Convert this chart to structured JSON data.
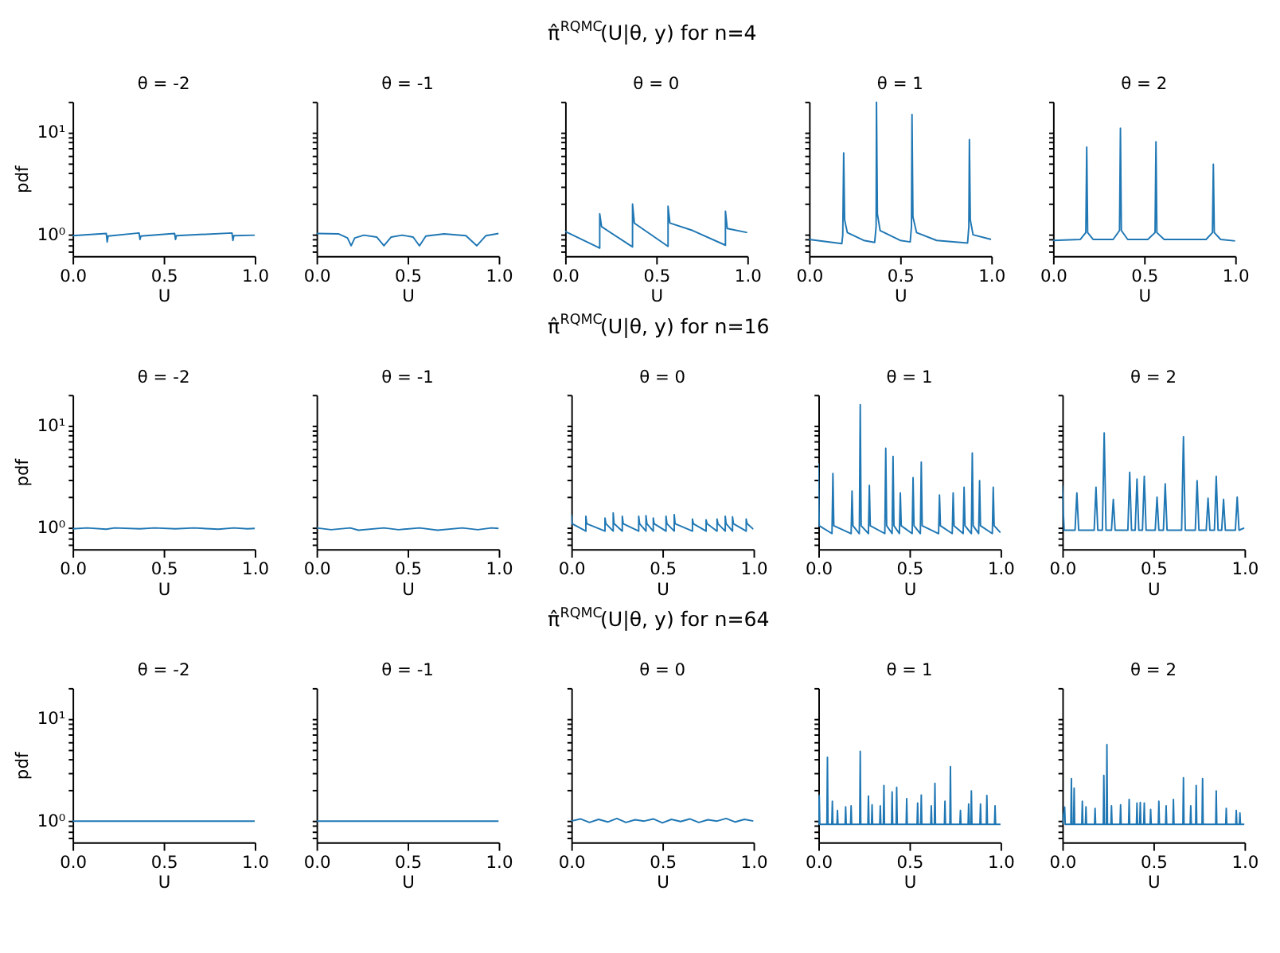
{
  "chart_data": [
    {
      "type": "line",
      "title": "θ = -2",
      "xlabel": "U",
      "ylabel": "pdf",
      "color": "#1f77b4",
      "log": true,
      "xlim": [
        0,
        1
      ],
      "ylim": [
        0.62,
        20
      ],
      "xticks": [
        {
          "value": 0,
          "label": "0.0"
        },
        {
          "value": 0.5,
          "label": "0.5"
        },
        {
          "value": 1,
          "label": "1.0"
        }
      ],
      "yticks": [
        {
          "value": 0.7,
          "label": null
        },
        {
          "value": 0.8,
          "label": null
        },
        {
          "value": 0.9,
          "label": null
        },
        {
          "value": 1,
          "label": "10⁰"
        },
        {
          "value": 2,
          "label": null
        },
        {
          "value": 3,
          "label": null
        },
        {
          "value": 4,
          "label": null
        },
        {
          "value": 5,
          "label": null
        },
        {
          "value": 6,
          "label": null
        },
        {
          "value": 7,
          "label": null
        },
        {
          "value": 8,
          "label": null
        },
        {
          "value": 9,
          "label": null
        },
        {
          "value": 10,
          "label": "10¹"
        },
        {
          "value": 20,
          "label": null
        }
      ],
      "x": [
        0,
        0.185,
        0.19,
        0.195,
        0.365,
        0.37,
        0.375,
        0.56,
        0.565,
        0.57,
        0.875,
        0.88,
        0.885,
        1
      ],
      "values": [
        0.98,
        1.03,
        0.85,
        0.97,
        1.04,
        0.9,
        0.97,
        1.03,
        0.9,
        0.98,
        1.04,
        0.88,
        0.98,
        0.99
      ]
    },
    {
      "type": "line",
      "title": "θ = -1",
      "xlabel": "U",
      "color": "#1f77b4",
      "log": true,
      "tick_labels": "x",
      "xlim": [
        0,
        1
      ],
      "ylim": [
        0.62,
        20
      ],
      "xticks": [
        {
          "value": 0,
          "label": "0.0"
        },
        {
          "value": 0.5,
          "label": "0.5"
        },
        {
          "value": 1,
          "label": "1.0"
        }
      ],
      "yticks": [
        0.7,
        0.8,
        0.9,
        1,
        2,
        3,
        4,
        5,
        6,
        7,
        8,
        9,
        10,
        20
      ],
      "x": [
        0,
        0.12,
        0.17,
        0.19,
        0.21,
        0.26,
        0.33,
        0.37,
        0.41,
        0.47,
        0.53,
        0.565,
        0.6,
        0.7,
        0.82,
        0.88,
        0.93,
        1
      ],
      "values": [
        1.03,
        1.02,
        0.93,
        0.78,
        0.93,
        0.99,
        0.95,
        0.78,
        0.95,
        0.99,
        0.95,
        0.78,
        0.97,
        1.02,
        0.98,
        0.78,
        0.98,
        1.03
      ]
    },
    {
      "type": "line",
      "title": "π̂$^{RQMC}$(U|θ, y) for n=4",
      "subtitle": "θ = 0",
      "xlabel": "U",
      "color": "#1f77b4",
      "log": true,
      "tick_labels": "x",
      "xlim": [
        0,
        1
      ],
      "ylim": [
        0.62,
        20
      ],
      "xticks": [
        {
          "value": 0,
          "label": "0.0"
        },
        {
          "value": 0.5,
          "label": "0.5"
        },
        {
          "value": 1,
          "label": "1.0"
        }
      ],
      "yticks": [
        0.7,
        0.8,
        0.9,
        1,
        2,
        3,
        4,
        5,
        6,
        7,
        8,
        9,
        10,
        20
      ],
      "x": [
        0,
        0.19,
        0.19,
        0.2,
        0.37,
        0.37,
        0.38,
        0.565,
        0.565,
        0.575,
        0.7,
        0.88,
        0.88,
        0.89,
        1
      ],
      "values": [
        1.08,
        0.74,
        1.6,
        1.2,
        0.76,
        2.0,
        1.3,
        0.77,
        1.9,
        1.3,
        1.1,
        0.79,
        1.7,
        1.15,
        1.05
      ]
    },
    {
      "type": "line",
      "title": "θ = 1",
      "xlabel": "U",
      "color": "#1f77b4",
      "log": true,
      "tick_labels": "x",
      "xlim": [
        0,
        1
      ],
      "ylim": [
        0.62,
        20
      ],
      "xticks": [
        {
          "value": 0,
          "label": "0.0"
        },
        {
          "value": 0.5,
          "label": "0.5"
        },
        {
          "value": 1,
          "label": "1.0"
        }
      ],
      "yticks": [
        0.7,
        0.8,
        0.9,
        1,
        2,
        3,
        4,
        5,
        6,
        7,
        8,
        9,
        10,
        20
      ],
      "x": [
        0,
        0.18,
        0.185,
        0.19,
        0.195,
        0.21,
        0.3,
        0.36,
        0.368,
        0.37,
        0.375,
        0.39,
        0.5,
        0.555,
        0.562,
        0.565,
        0.57,
        0.59,
        0.7,
        0.87,
        0.877,
        0.88,
        0.885,
        0.9,
        1
      ],
      "values": [
        0.9,
        0.82,
        1.0,
        6.3,
        1.4,
        1.05,
        0.88,
        0.84,
        1.2,
        20,
        1.6,
        1.1,
        0.88,
        0.85,
        1.2,
        15,
        1.5,
        1.05,
        0.88,
        0.83,
        1.2,
        8.5,
        1.4,
        1.0,
        0.9
      ]
    },
    {
      "type": "line",
      "title": "θ = 2",
      "xlabel": "U",
      "color": "#1f77b4",
      "log": true,
      "tick_labels": "x",
      "xlim": [
        0,
        1
      ],
      "ylim": [
        0.62,
        20
      ],
      "xticks": [
        {
          "value": 0,
          "label": "0.0"
        },
        {
          "value": 0.5,
          "label": "0.5"
        },
        {
          "value": 1,
          "label": "1.0"
        }
      ],
      "yticks": [
        0.7,
        0.8,
        0.9,
        1,
        2,
        3,
        4,
        5,
        6,
        7,
        8,
        9,
        10,
        20
      ],
      "x": [
        0,
        0.15,
        0.18,
        0.185,
        0.19,
        0.22,
        0.33,
        0.365,
        0.37,
        0.375,
        0.41,
        0.52,
        0.56,
        0.565,
        0.57,
        0.61,
        0.84,
        0.875,
        0.88,
        0.885,
        0.92,
        1
      ],
      "values": [
        0.88,
        0.9,
        1.05,
        7.2,
        1.05,
        0.9,
        0.9,
        1.1,
        11,
        1.1,
        0.9,
        0.9,
        1.05,
        8.1,
        1.05,
        0.9,
        0.9,
        1.05,
        4.9,
        1.05,
        0.9,
        0.87
      ]
    },
    {
      "type": "line",
      "title": "θ = -2",
      "xlabel": "U",
      "ylabel": "pdf",
      "color": "#1f77b4",
      "log": true,
      "xlim": [
        0,
        1
      ],
      "ylim": [
        0.62,
        20
      ],
      "xticks": [
        {
          "value": 0,
          "label": "0.0"
        },
        {
          "value": 0.5,
          "label": "0.5"
        },
        {
          "value": 1,
          "label": "1.0"
        }
      ],
      "yticks": [
        {
          "value": 0.7,
          "label": null
        },
        {
          "value": 0.8,
          "label": null
        },
        {
          "value": 0.9,
          "label": null
        },
        {
          "value": 1,
          "label": "10⁰"
        },
        {
          "value": 2,
          "label": null
        },
        {
          "value": 3,
          "label": null
        },
        {
          "value": 4,
          "label": null
        },
        {
          "value": 5,
          "label": null
        },
        {
          "value": 6,
          "label": null
        },
        {
          "value": 7,
          "label": null
        },
        {
          "value": 8,
          "label": null
        },
        {
          "value": 9,
          "label": null
        },
        {
          "value": 10,
          "label": "10¹"
        },
        {
          "value": 20,
          "label": null
        }
      ],
      "x": [
        0,
        0.08,
        0.185,
        0.23,
        0.37,
        0.45,
        0.565,
        0.665,
        0.8,
        0.885,
        0.96,
        1
      ],
      "values": [
        0.98,
        1.0,
        0.97,
        1.0,
        0.98,
        1.0,
        0.98,
        1.0,
        0.97,
        1.0,
        0.98,
        0.99
      ]
    },
    {
      "type": "line",
      "title": "θ = -1",
      "xlabel": "U",
      "color": "#1f77b4",
      "log": true,
      "tick_labels": "x",
      "xlim": [
        0,
        1
      ],
      "ylim": [
        0.62,
        20
      ],
      "xticks": [
        {
          "value": 0,
          "label": "0.0"
        },
        {
          "value": 0.5,
          "label": "0.5"
        },
        {
          "value": 1,
          "label": "1.0"
        }
      ],
      "yticks": [
        0.7,
        0.8,
        0.9,
        1,
        2,
        3,
        4,
        5,
        6,
        7,
        8,
        9,
        10,
        20
      ],
      "x": [
        0,
        0.08,
        0.185,
        0.23,
        0.37,
        0.45,
        0.565,
        0.665,
        0.8,
        0.885,
        0.96,
        1
      ],
      "values": [
        1.0,
        0.96,
        1.0,
        0.95,
        1.0,
        0.96,
        1.0,
        0.95,
        1.0,
        0.96,
        1.0,
        0.99
      ]
    },
    {
      "type": "line",
      "title": "π̂$^{RQMC}$(U|θ, y) for n=16",
      "subtitle": "θ = 0",
      "xlabel": "U",
      "color": "#1f77b4",
      "log": true,
      "tick_labels": "x",
      "xlim": [
        0,
        1
      ],
      "ylim": [
        0.62,
        20
      ],
      "xticks": [
        {
          "value": 0,
          "label": "0.0"
        },
        {
          "value": 0.5,
          "label": "0.5"
        },
        {
          "value": 1,
          "label": "1.0"
        }
      ],
      "yticks": [
        0.7,
        0.8,
        0.9,
        1,
        2,
        3,
        4,
        5,
        6,
        7,
        8,
        9,
        10,
        20
      ],
      "x": [
        0,
        0.005,
        0.08,
        0.08,
        0.085,
        0.185,
        0.185,
        0.19,
        0.23,
        0.23,
        0.235,
        0.28,
        0.28,
        0.285,
        0.37,
        0.37,
        0.375,
        0.41,
        0.41,
        0.415,
        0.45,
        0.45,
        0.455,
        0.52,
        0.52,
        0.525,
        0.565,
        0.565,
        0.57,
        0.665,
        0.665,
        0.67,
        0.74,
        0.74,
        0.745,
        0.8,
        0.8,
        0.805,
        0.845,
        0.845,
        0.85,
        0.885,
        0.885,
        0.89,
        0.96,
        0.96,
        0.965,
        1
      ],
      "values": [
        1.35,
        1.1,
        0.93,
        1.3,
        1.1,
        0.93,
        1.25,
        1.1,
        0.93,
        1.4,
        1.1,
        0.93,
        1.3,
        1.1,
        0.93,
        1.3,
        1.1,
        0.93,
        1.32,
        1.1,
        0.93,
        1.25,
        1.1,
        0.93,
        1.3,
        1.1,
        0.93,
        1.35,
        1.1,
        0.93,
        1.22,
        1.1,
        0.93,
        1.2,
        1.1,
        0.93,
        1.22,
        1.1,
        0.93,
        1.3,
        1.1,
        0.93,
        1.28,
        1.1,
        0.93,
        1.22,
        1.1,
        0.97
      ]
    },
    {
      "type": "line",
      "title": "θ = 1",
      "xlabel": "U",
      "color": "#1f77b4",
      "log": true,
      "tick_labels": "x",
      "xlim": [
        0,
        1
      ],
      "ylim": [
        0.62,
        20
      ],
      "xticks": [
        {
          "value": 0,
          "label": "0.0"
        },
        {
          "value": 0.5,
          "label": "0.5"
        },
        {
          "value": 1,
          "label": "1.0"
        }
      ],
      "yticks": [
        0.7,
        0.8,
        0.9,
        1,
        2,
        3,
        4,
        5,
        6,
        7,
        8,
        9,
        10,
        20
      ],
      "x": [
        0,
        0.005,
        0.075,
        0.08,
        0.085,
        0.18,
        0.185,
        0.19,
        0.225,
        0.23,
        0.235,
        0.275,
        0.28,
        0.285,
        0.365,
        0.37,
        0.375,
        0.405,
        0.41,
        0.415,
        0.445,
        0.45,
        0.455,
        0.515,
        0.52,
        0.525,
        0.56,
        0.565,
        0.57,
        0.66,
        0.665,
        0.67,
        0.735,
        0.74,
        0.745,
        0.795,
        0.8,
        0.805,
        0.84,
        0.845,
        0.85,
        0.88,
        0.885,
        0.89,
        0.955,
        0.96,
        0.965,
        1
      ],
      "values": [
        4.3,
        1.05,
        0.88,
        3.4,
        1.05,
        0.88,
        2.3,
        1.05,
        0.88,
        16,
        1.05,
        0.88,
        2.6,
        1.05,
        0.88,
        6.0,
        1.05,
        0.88,
        5.0,
        1.05,
        0.88,
        2.2,
        1.05,
        0.88,
        3.1,
        1.05,
        0.88,
        4.4,
        1.05,
        0.88,
        2.1,
        1.05,
        0.88,
        2.2,
        1.05,
        0.88,
        2.5,
        1.05,
        0.88,
        5.4,
        1.05,
        0.88,
        2.9,
        1.05,
        0.88,
        2.5,
        1.05,
        0.9
      ]
    },
    {
      "type": "line",
      "title": "θ = 2",
      "xlabel": "U",
      "color": "#1f77b4",
      "log": true,
      "tick_labels": "x",
      "xlim": [
        0,
        1
      ],
      "ylim": [
        0.62,
        20
      ],
      "xticks": [
        {
          "value": 0,
          "label": "0.0"
        },
        {
          "value": 0.5,
          "label": "0.5"
        },
        {
          "value": 1,
          "label": "1.0"
        }
      ],
      "yticks": [
        0.7,
        0.8,
        0.9,
        1,
        2,
        3,
        4,
        5,
        6,
        7,
        8,
        9,
        10,
        20
      ],
      "x": [
        0,
        0.01,
        0.07,
        0.08,
        0.09,
        0.175,
        0.185,
        0.195,
        0.22,
        0.23,
        0.24,
        0.27,
        0.28,
        0.29,
        0.36,
        0.37,
        0.38,
        0.4,
        0.41,
        0.42,
        0.44,
        0.45,
        0.46,
        0.51,
        0.52,
        0.53,
        0.555,
        0.565,
        0.575,
        0.655,
        0.665,
        0.675,
        0.73,
        0.74,
        0.75,
        0.79,
        0.8,
        0.81,
        0.835,
        0.845,
        0.855,
        0.875,
        0.885,
        0.895,
        0.95,
        0.96,
        0.97,
        1
      ],
      "values": [
        2.6,
        0.95,
        0.95,
        2.2,
        0.95,
        0.95,
        2.5,
        0.95,
        0.95,
        8.5,
        0.95,
        0.95,
        1.9,
        0.95,
        0.95,
        3.5,
        0.95,
        0.95,
        3.0,
        0.95,
        0.95,
        3.2,
        0.95,
        0.95,
        2.0,
        0.95,
        0.95,
        2.7,
        0.95,
        0.95,
        7.8,
        0.95,
        0.95,
        2.9,
        0.95,
        0.95,
        1.95,
        0.95,
        0.95,
        3.2,
        0.95,
        0.95,
        1.9,
        0.95,
        0.95,
        2.0,
        0.95,
        1.0
      ]
    },
    {
      "type": "line",
      "title": "θ = -2",
      "xlabel": "U",
      "ylabel": "pdf",
      "color": "#1f77b4",
      "log": true,
      "xlim": [
        0,
        1
      ],
      "ylim": [
        0.62,
        20
      ],
      "xticks": [
        {
          "value": 0,
          "label": "0.0"
        },
        {
          "value": 0.5,
          "label": "0.5"
        },
        {
          "value": 1,
          "label": "1.0"
        }
      ],
      "yticks": [
        {
          "value": 0.7,
          "label": null
        },
        {
          "value": 0.8,
          "label": null
        },
        {
          "value": 0.9,
          "label": null
        },
        {
          "value": 1,
          "label": "10⁰"
        },
        {
          "value": 2,
          "label": null
        },
        {
          "value": 3,
          "label": null
        },
        {
          "value": 4,
          "label": null
        },
        {
          "value": 5,
          "label": null
        },
        {
          "value": 6,
          "label": null
        },
        {
          "value": 7,
          "label": null
        },
        {
          "value": 8,
          "label": null
        },
        {
          "value": 9,
          "label": null
        },
        {
          "value": 10,
          "label": "10¹"
        },
        {
          "value": 20,
          "label": null
        }
      ],
      "x": [
        0,
        0.25,
        0.5,
        0.75,
        1
      ],
      "values": [
        1.0,
        1.0,
        1.0,
        1.0,
        1.0
      ]
    },
    {
      "type": "line",
      "title": "θ = -1",
      "xlabel": "U",
      "color": "#1f77b4",
      "log": true,
      "tick_labels": "x",
      "xlim": [
        0,
        1
      ],
      "ylim": [
        0.62,
        20
      ],
      "xticks": [
        {
          "value": 0,
          "label": "0.0"
        },
        {
          "value": 0.5,
          "label": "0.5"
        },
        {
          "value": 1,
          "label": "1.0"
        }
      ],
      "yticks": [
        0.7,
        0.8,
        0.9,
        1,
        2,
        3,
        4,
        5,
        6,
        7,
        8,
        9,
        10,
        20
      ],
      "x": [
        0,
        0.25,
        0.5,
        0.75,
        1
      ],
      "values": [
        1.0,
        1.0,
        1.0,
        1.0,
        1.0
      ]
    },
    {
      "type": "line",
      "title": "π̂$^{RQMC}$(U|θ, y) for n=64",
      "subtitle": "θ = 0",
      "xlabel": "U",
      "color": "#1f77b4",
      "log": true,
      "tick_labels": "x",
      "xlim": [
        0,
        1
      ],
      "ylim": [
        0.62,
        20
      ],
      "xticks": [
        {
          "value": 0,
          "label": "0.0"
        },
        {
          "value": 0.5,
          "label": "0.5"
        },
        {
          "value": 1,
          "label": "1.0"
        }
      ],
      "yticks": [
        0.7,
        0.8,
        0.9,
        1,
        2,
        3,
        4,
        5,
        6,
        7,
        8,
        9,
        10,
        20
      ],
      "x": [
        0,
        0.05,
        0.1,
        0.15,
        0.2,
        0.25,
        0.3,
        0.35,
        0.4,
        0.45,
        0.5,
        0.55,
        0.6,
        0.65,
        0.7,
        0.75,
        0.8,
        0.85,
        0.9,
        0.95,
        1
      ],
      "values": [
        1.0,
        1.05,
        0.97,
        1.04,
        0.98,
        1.06,
        0.97,
        1.03,
        1.0,
        1.05,
        0.96,
        1.04,
        0.99,
        1.05,
        0.97,
        1.03,
        1.0,
        1.06,
        0.98,
        1.04,
        1.0
      ]
    },
    {
      "type": "line",
      "title": "θ = 1",
      "xlabel": "U",
      "color": "#1f77b4",
      "log": true,
      "tick_labels": "x",
      "xlim": [
        0,
        1
      ],
      "ylim": [
        0.62,
        20
      ],
      "xticks": [
        {
          "value": 0,
          "label": "0.0"
        },
        {
          "value": 0.5,
          "label": "0.5"
        },
        {
          "value": 1,
          "label": "1.0"
        }
      ],
      "yticks": [
        0.7,
        0.8,
        0.9,
        1,
        2,
        3,
        4,
        5,
        6,
        7,
        8,
        9,
        10,
        20
      ],
      "x": [
        0,
        0.005,
        0.008,
        0.047,
        0.05,
        0.053,
        0.074,
        0.077,
        0.08,
        0.102,
        0.105,
        0.108,
        0.147,
        0.15,
        0.153,
        0.177,
        0.18,
        0.183,
        0.227,
        0.23,
        0.233,
        0.272,
        0.275,
        0.278,
        0.292,
        0.295,
        0.298,
        0.337,
        0.34,
        0.343,
        0.357,
        0.36,
        0.363,
        0.402,
        0.405,
        0.408,
        0.427,
        0.43,
        0.433,
        0.482,
        0.485,
        0.488,
        0.542,
        0.545,
        0.548,
        0.562,
        0.565,
        0.568,
        0.617,
        0.62,
        0.623,
        0.637,
        0.64,
        0.643,
        0.692,
        0.695,
        0.698,
        0.722,
        0.725,
        0.728,
        0.777,
        0.78,
        0.783,
        0.822,
        0.825,
        0.828,
        0.837,
        0.84,
        0.843,
        0.887,
        0.89,
        0.893,
        0.922,
        0.925,
        0.928,
        0.967,
        0.97,
        0.973,
        1
      ],
      "values": [
        0.93,
        1.78,
        0.93,
        0.93,
        4.2,
        0.93,
        0.93,
        1.56,
        0.93,
        0.93,
        1.27,
        0.93,
        0.93,
        1.38,
        0.93,
        0.93,
        1.41,
        0.93,
        0.93,
        4.8,
        0.93,
        0.93,
        1.76,
        0.93,
        0.93,
        1.44,
        0.93,
        0.93,
        1.41,
        0.93,
        0.93,
        2.23,
        0.93,
        0.93,
        1.93,
        0.93,
        0.93,
        2.14,
        0.93,
        0.93,
        1.66,
        0.93,
        0.93,
        1.5,
        0.93,
        0.93,
        1.8,
        0.93,
        0.93,
        1.41,
        0.93,
        0.93,
        2.34,
        0.93,
        0.93,
        1.56,
        0.93,
        0.93,
        3.4,
        0.93,
        0.93,
        1.27,
        0.93,
        0.93,
        1.47,
        0.93,
        0.93,
        1.97,
        0.93,
        0.93,
        1.47,
        0.93,
        0.93,
        1.78,
        0.93,
        0.93,
        1.41,
        0.93,
        0.93
      ]
    },
    {
      "type": "line",
      "title": "θ = 2",
      "xlabel": "U",
      "color": "#1f77b4",
      "log": true,
      "tick_labels": "x",
      "xlim": [
        0,
        1
      ],
      "ylim": [
        0.62,
        20
      ],
      "xticks": [
        {
          "value": 0,
          "label": "0.0"
        },
        {
          "value": 0.5,
          "label": "0.5"
        },
        {
          "value": 1,
          "label": "1.0"
        }
      ],
      "yticks": [
        0.7,
        0.8,
        0.9,
        1,
        2,
        3,
        4,
        5,
        6,
        7,
        8,
        9,
        10,
        20
      ],
      "x": [
        0,
        0.013,
        0.016,
        0.047,
        0.05,
        0.053,
        0.062,
        0.065,
        0.068,
        0.107,
        0.11,
        0.113,
        0.127,
        0.13,
        0.133,
        0.177,
        0.18,
        0.183,
        0.225,
        0.228,
        0.231,
        0.242,
        0.245,
        0.248,
        0.267,
        0.27,
        0.273,
        0.317,
        0.32,
        0.323,
        0.364,
        0.367,
        0.37,
        0.407,
        0.41,
        0.413,
        0.425,
        0.428,
        0.431,
        0.447,
        0.45,
        0.453,
        0.482,
        0.485,
        0.488,
        0.527,
        0.53,
        0.533,
        0.567,
        0.57,
        0.573,
        0.607,
        0.61,
        0.613,
        0.662,
        0.665,
        0.668,
        0.702,
        0.705,
        0.708,
        0.732,
        0.735,
        0.738,
        0.767,
        0.77,
        0.773,
        0.842,
        0.845,
        0.848,
        0.897,
        0.9,
        0.903,
        0.952,
        0.955,
        0.958,
        0.972,
        0.975,
        0.978,
        1
      ],
      "values": [
        0.93,
        1.37,
        0.93,
        0.93,
        2.6,
        0.93,
        0.93,
        2.1,
        0.93,
        0.93,
        1.56,
        0.93,
        0.93,
        1.38,
        0.93,
        0.93,
        1.33,
        0.93,
        0.93,
        2.8,
        0.93,
        0.93,
        5.6,
        0.93,
        0.93,
        1.41,
        0.93,
        0.93,
        1.44,
        0.93,
        0.93,
        1.63,
        0.93,
        0.93,
        1.5,
        0.93,
        0.93,
        1.52,
        0.93,
        0.93,
        1.5,
        0.93,
        0.93,
        1.3,
        0.93,
        0.93,
        1.56,
        0.93,
        0.93,
        1.41,
        0.93,
        0.93,
        1.63,
        0.93,
        0.93,
        2.65,
        0.93,
        0.93,
        1.41,
        0.93,
        0.93,
        2.23,
        0.93,
        0.93,
        2.6,
        0.93,
        0.93,
        1.97,
        0.93,
        0.93,
        1.33,
        0.93,
        0.93,
        1.27,
        0.93,
        0.93,
        1.2,
        0.93,
        0.93
      ]
    }
  ]
}
